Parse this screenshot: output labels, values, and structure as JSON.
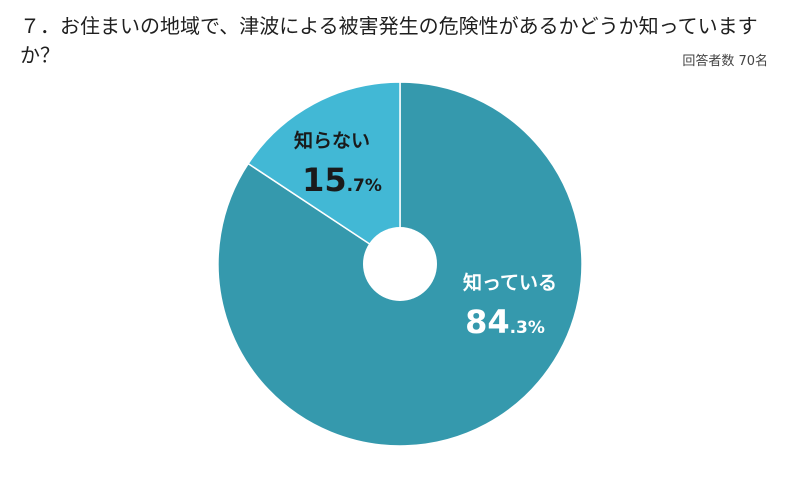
{
  "title": "７．お住まいの地域で、津波による被害発生の危険性があるかどうか知っていますか？",
  "respondents": "回答者数 70名",
  "colors": {
    "slice_known": "#3599ad",
    "slice_unknown": "#42b8d5",
    "label_dark": "#1a1a1a",
    "label_light": "#ffffff",
    "separator": "#ffffff"
  },
  "chart_data": {
    "type": "pie",
    "donut": true,
    "start": "top",
    "direction": "clockwise",
    "slices": [
      {
        "label": "知っている",
        "value": 84.3,
        "int_part": "84",
        "dec_part": ".3%"
      },
      {
        "label": "知らない",
        "value": 15.7,
        "int_part": "15",
        "dec_part": ".7%"
      }
    ]
  }
}
